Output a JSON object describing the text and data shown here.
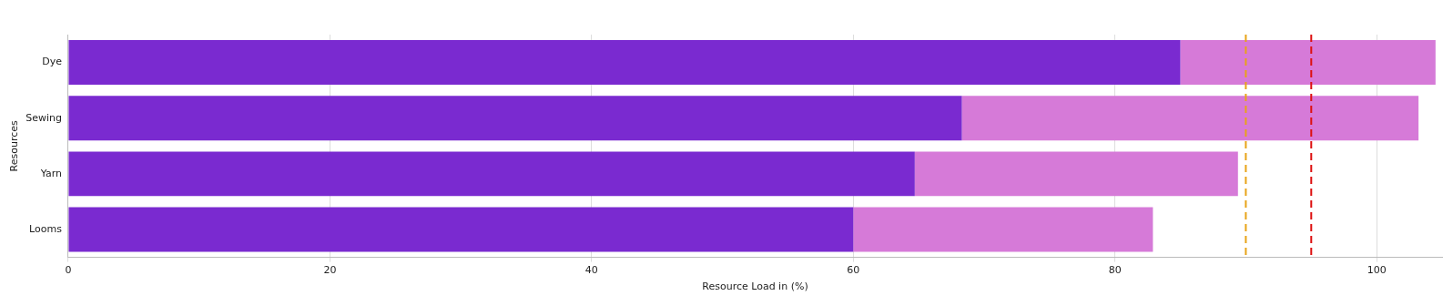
{
  "chart_data": {
    "type": "bar",
    "orientation": "horizontal",
    "stacked": true,
    "xlabel": "Resource Load in (%)",
    "ylabel": "Resources",
    "categories": [
      "Dye",
      "Sewing",
      "Yarn",
      "Looms"
    ],
    "series": [
      {
        "color": "#7a2ad0",
        "values": [
          85,
          68.3,
          64.7,
          60
        ]
      },
      {
        "color": "#d67ad8",
        "values": [
          19.5,
          34.9,
          24.7,
          22.9
        ]
      }
    ],
    "xlim": [
      0,
      105
    ],
    "xticks": [
      0,
      20,
      40,
      60,
      80,
      100
    ],
    "grid": "x",
    "legend": false,
    "ref_lines": [
      {
        "axis": "x",
        "value": 90,
        "color": "#e8a317",
        "line_style": "dashed"
      },
      {
        "axis": "x",
        "value": 95,
        "color": "#dd1111",
        "line_style": "dashed"
      }
    ]
  }
}
